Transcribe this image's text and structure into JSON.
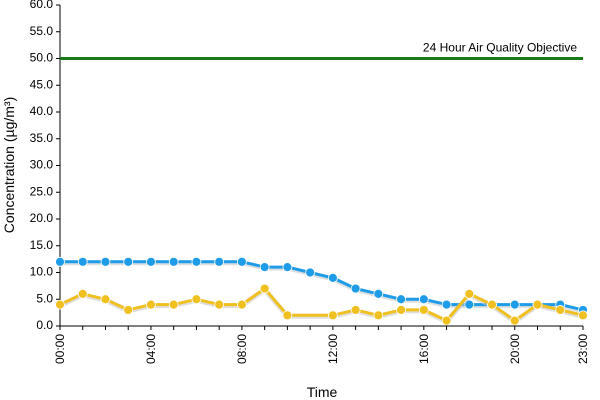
{
  "chart_data": {
    "type": "line",
    "title": "",
    "xlabel": "Time",
    "ylabel": "Concentration (µg/m³)",
    "ylim": [
      0,
      60
    ],
    "y_ticks": [
      "0.0",
      "5.0",
      "10.0",
      "15.0",
      "20.0",
      "25.0",
      "30.0",
      "35.0",
      "40.0",
      "45.0",
      "50.0",
      "55.0",
      "60.0"
    ],
    "x_hours": [
      0,
      1,
      2,
      3,
      4,
      5,
      6,
      7,
      8,
      9,
      10,
      11,
      12,
      13,
      14,
      15,
      16,
      17,
      18,
      19,
      20,
      21,
      22,
      23
    ],
    "x_tick_labels": [
      {
        "hour": 0,
        "label": "00:00"
      },
      {
        "hour": 4,
        "label": "04:00"
      },
      {
        "hour": 8,
        "label": "08:00"
      },
      {
        "hour": 12,
        "label": "12:00"
      },
      {
        "hour": 16,
        "label": "16:00"
      },
      {
        "hour": 20,
        "label": "20:00"
      },
      {
        "hour": 23,
        "label": "23:00"
      }
    ],
    "grid": false,
    "series": [
      {
        "color": "#1f9ce8",
        "values": [
          12,
          12,
          12,
          12,
          12,
          12,
          12,
          12,
          12,
          11,
          11,
          10,
          9,
          7,
          6,
          5,
          5,
          4,
          4,
          4,
          4,
          4,
          4,
          3
        ]
      },
      {
        "color": "#f0c020",
        "values": [
          4,
          6,
          5,
          3,
          4,
          4,
          5,
          4,
          4,
          7,
          2,
          null,
          2,
          3,
          2,
          3,
          3,
          1,
          6,
          4,
          1,
          4,
          3,
          2
        ]
      }
    ],
    "reference_line": {
      "label": "24 Hour Air Quality Objective",
      "value": 50,
      "color": "#1a7a1a"
    }
  }
}
